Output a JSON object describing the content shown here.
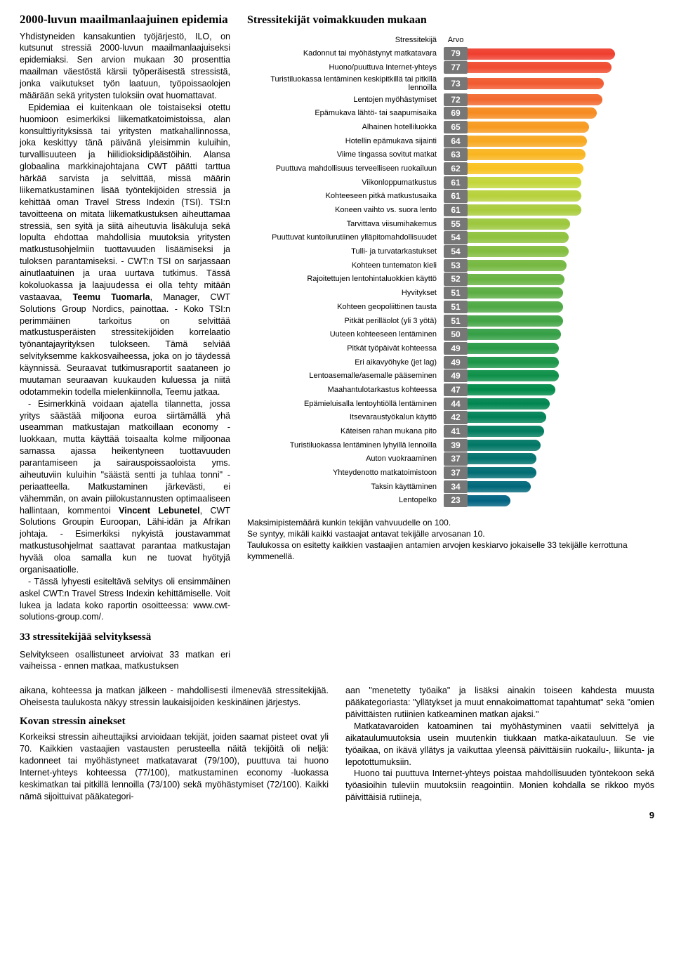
{
  "left": {
    "title": "2000-luvun maailmanlaajuinen epidemia",
    "p1": "Yhdistyneiden kansakuntien työjärjestö, ILO, on kutsunut stressiä 2000-luvun maailmanlaajuiseksi epidemiaksi. Sen arvion mukaan 30 prosenttia maailman väestöstä kärsii työperäisestä stressistä, jonka vaikutukset työn laatuun, työpoissaolojen määrään sekä yritysten tuloksiin ovat huomattavat.",
    "p2": "Epidemiaa ei kuitenkaan ole toistaiseksi otettu huomioon esimerkiksi liikematkatoimistoissa, alan konsulttiyrityksissä tai yritysten matkahallinnossa, joka keskittyy tänä päivänä yleisimmin kuluihin, turvallisuuteen ja hiilidioksidipäästöihin. Alansa globaalina markkinajohtajana CWT päätti tarttua härkää sarvista ja selvittää, missä määrin liikematkustaminen lisää työntekijöiden stressiä ja kehittää oman Travel Stress Indexin (TSI). TSI:n tavoitteena on mitata liikematkustuksen aiheuttamaa stressiä, sen syitä ja siitä aiheutuvia lisäkuluja sekä lopulta ehdottaa mahdollisia muutoksia yritysten matkustusohjelmiin tuottavuuden lisäämiseksi ja tuloksen parantamiseksi. - CWT:n TSI on sarjassaan ainutlaatuinen ja uraa uurtava tutkimus. Tässä kokoluokassa ja laajuudessa ei olla tehty mitään vastaavaa, ",
    "p2_bold": "Teemu Tuomarla",
    "p2b": ", Manager, CWT Solutions Group Nordics, painottaa. - Koko TSI:n perimmäinen tarkoitus on selvittää matkustusperäisten stressitekijöiden korrelaatio työnantajayrityksen tulokseen. Tämä selviää selvityksemme kakkosvaiheessa, joka on jo täydessä käynnissä. Seuraavat tutkimusraportit saataneen jo muutaman seuraavan kuukauden kuluessa ja niitä odotammekin todella mielenkiinnolla, Teemu jatkaa.",
    "p3": "- Tässä lyhyesti esiteltävä selvitys oli ensimmäinen askel CWT:n Travel Stress Indexin kehittämiselle. Voit lukea ja ladata koko raportin osoitteessa: www.cwt-solutions-group.com/.",
    "p4a": "- Esimerkkinä voidaan ajatella tilannetta, jossa yritys säästää miljoona euroa siirtämällä yhä useamman matkustajan matkoillaan economy -luokkaan, mutta käyttää toisaalta kolme miljoonaa samassa ajassa heikentyneen tuottavuuden parantamiseen ja sairauspoissaoloista yms. aiheutuviin kuluihin \"säästä sentti ja tuhlaa tonni\" -periaatteella. Matkustaminen järkevästi, ei vähemmän, on avain piilokustannusten optimaaliseen hallintaan, kommentoi ",
    "p4_bold": "Vincent Lebunetel",
    "p4b": ", CWT Solutions Groupin Euroopan, Lähi-idän ja Afrikan johtaja. - Esimerkiksi nykyistä joustavammat matkustusohjelmat saattavat parantaa matkustajan hyvää oloa samalla kun ne tuovat hyötyjä organisaatiolle.",
    "sub2": "33 stressitekijää selvityksessä",
    "p5": "Selvitykseen osallistuneet arvioivat 33 matkan eri vaiheissa - ennen matkaa, matkustuksen"
  },
  "chart": {
    "title": "Stressitekijät voimakkuuden mukaan",
    "head_label": "Stressitekijä",
    "head_value": "Arvo",
    "max": 100,
    "colors": {
      "hot": [
        "#ef3e2e",
        "#f04b2f",
        "#f15a2f",
        "#f2682e"
      ],
      "warm": [
        "#f68b1f",
        "#f79a1f",
        "#f8a81f",
        "#f9b51f",
        "#fac21f"
      ],
      "cool": [
        "#c3d63a",
        "#b6d13b",
        "#a9cc3c",
        "#9cc73d",
        "#8fc23e",
        "#82bd3f",
        "#75b840",
        "#68b341",
        "#5bae42",
        "#4ea943",
        "#41a444",
        "#349f45",
        "#279a46",
        "#1a9547",
        "#0d9048",
        "#008b49",
        "#008650",
        "#008157",
        "#007c5e",
        "#007765"
      ]
    },
    "rows": [
      {
        "label": "Kadonnut tai myöhästynyt matkatavara",
        "value": 79,
        "c": "#ef3e2e"
      },
      {
        "label": "Huono/puuttuva Internet-yhteys",
        "value": 77,
        "c": "#f04b2f"
      },
      {
        "label": "Turistiluokassa lentäminen keskipitkillä tai pitkillä lennoilla",
        "value": 73,
        "c": "#f15a2f"
      },
      {
        "label": "Lentojen myöhästymiset",
        "value": 72,
        "c": "#f2682e"
      },
      {
        "label": "Epämukava lähtö- tai saapumisaika",
        "value": 69,
        "c": "#f68b1f"
      },
      {
        "label": "Alhainen hotelliluokka",
        "value": 65,
        "c": "#f79a1f"
      },
      {
        "label": "Hotellin epämukava sijainti",
        "value": 64,
        "c": "#f8a81f"
      },
      {
        "label": "Viime tingassa sovitut matkat",
        "value": 63,
        "c": "#f9b51f"
      },
      {
        "label": "Puuttuva mahdollisuus terveelliseen ruokailuun",
        "value": 62,
        "c": "#fac21f"
      },
      {
        "label": "Viikonloppumatkustus",
        "value": 61,
        "c": "#c3d63a"
      },
      {
        "label": "Kohteeseen pitkä matkustusaika",
        "value": 61,
        "c": "#b6d13b"
      },
      {
        "label": "Koneen vaihto vs. suora lento",
        "value": 61,
        "c": "#a9cc3c"
      },
      {
        "label": "Tarvittava viisumihakemus",
        "value": 55,
        "c": "#9cc73d"
      },
      {
        "label": "Puuttuvat kuntoilurutiinen ylläpitomahdollisuudet",
        "value": 54,
        "c": "#8fc23e"
      },
      {
        "label": "Tulli- ja turvatarkastukset",
        "value": 54,
        "c": "#82bd3f"
      },
      {
        "label": "Kohteen tuntematon kieli",
        "value": 53,
        "c": "#75b840"
      },
      {
        "label": "Rajoitettujen lentohintaluokkien käyttö",
        "value": 52,
        "c": "#68b341"
      },
      {
        "label": "Hyvitykset",
        "value": 51,
        "c": "#5bae42"
      },
      {
        "label": "Kohteen geopoliittinen tausta",
        "value": 51,
        "c": "#4ea943"
      },
      {
        "label": "Pitkät perilläolot (yli 3 yötä)",
        "value": 51,
        "c": "#41a444"
      },
      {
        "label": "Uuteen kohteeseen lentäminen",
        "value": 50,
        "c": "#349f45"
      },
      {
        "label": "Pitkät työpäivät kohteessa",
        "value": 49,
        "c": "#279a46"
      },
      {
        "label": "Eri aikavyöhyke (jet lag)",
        "value": 49,
        "c": "#1a9547"
      },
      {
        "label": "Lentoasemalle/asemalle pääseminen",
        "value": 49,
        "c": "#0d9048"
      },
      {
        "label": "Maahantulotarkastus kohteessa",
        "value": 47,
        "c": "#008b49"
      },
      {
        "label": "Epämieluisalla lentoyhtiöllä lentäminen",
        "value": 44,
        "c": "#008650"
      },
      {
        "label": "Itsevaraustyökalun käyttö",
        "value": 42,
        "c": "#008157"
      },
      {
        "label": "Käteisen rahan mukana pito",
        "value": 41,
        "c": "#007c5e"
      },
      {
        "label": "Turistiluokassa lentäminen lyhyillä lennoilla",
        "value": 39,
        "c": "#007765"
      },
      {
        "label": "Auton vuokraaminen",
        "value": 37,
        "c": "#00726c"
      },
      {
        "label": "Yhteydenotto matkatoimistoon",
        "value": 37,
        "c": "#006d73"
      },
      {
        "label": "Taksin käyttäminen",
        "value": 34,
        "c": "#00687a"
      },
      {
        "label": "Lentopelko",
        "value": 23,
        "c": "#006381"
      }
    ],
    "caption1": "Maksimipistemäärä kunkin tekijän vahvuudelle on 100.",
    "caption2": "Se syntyy, mikäli kaikki vastaajat antavat tekijälle arvosanan 10.",
    "caption3": "Taulukossa on esitetty kaikkien vastaajien antamien arvojen keskiarvo jokaiselle 33 tekijälle kerrottuna kymmenellä."
  },
  "bottom": {
    "c1": "aikana, kohteessa ja matkan jälkeen - mahdollisesti ilmenevää stressitekijää. Oheisesta taulukosta näkyy stressin laukaisijoiden keskinäinen järjestys.",
    "c1_title": "Kovan stressin ainekset",
    "c1b": "Korkeiksi stressin aiheuttajiksi arvioidaan tekijät, joiden saamat pisteet ovat yli 70. Kaikkien vastaajien vastausten perusteella näitä tekijöitä oli neljä: kadonneet tai myöhästyneet matkatavarat (79/100), puuttuva tai huono Internet-yhteys kohteessa (77/100), matkustaminen economy -luokassa keskimatkan tai pitkillä lennoilla (73/100) sekä myöhästymiset (72/100). Kaikki nämä sijoittuivat pääkategori-",
    "c2": "aan \"menetetty työaika\" ja lisäksi ainakin toiseen kahdesta muusta pääkategoriasta: \"yllätykset ja muut ennakoimattomat tapahtumat\" sekä \"omien päivittäisten rutiinien katkeaminen matkan ajaksi.\"",
    "c2b": "Matkatavaroiden katoaminen tai myöhästyminen vaatii selvittelyä ja aikataulumuutoksia usein muutenkin tiukkaan matka-aikatauluun. Se vie työaikaa, on ikävä yllätys ja vaikuttaa yleensä päivittäisiin ruokailu-, liikunta- ja lepotottumuksiin.",
    "c2c": "Huono tai puuttuva Internet-yhteys poistaa mahdollisuuden työntekoon sekä työasioihin tuleviin muutoksiin reagointiin. Monien kohdalla se rikkoo myös päivittäisiä rutiineja,"
  },
  "page_number": "9"
}
